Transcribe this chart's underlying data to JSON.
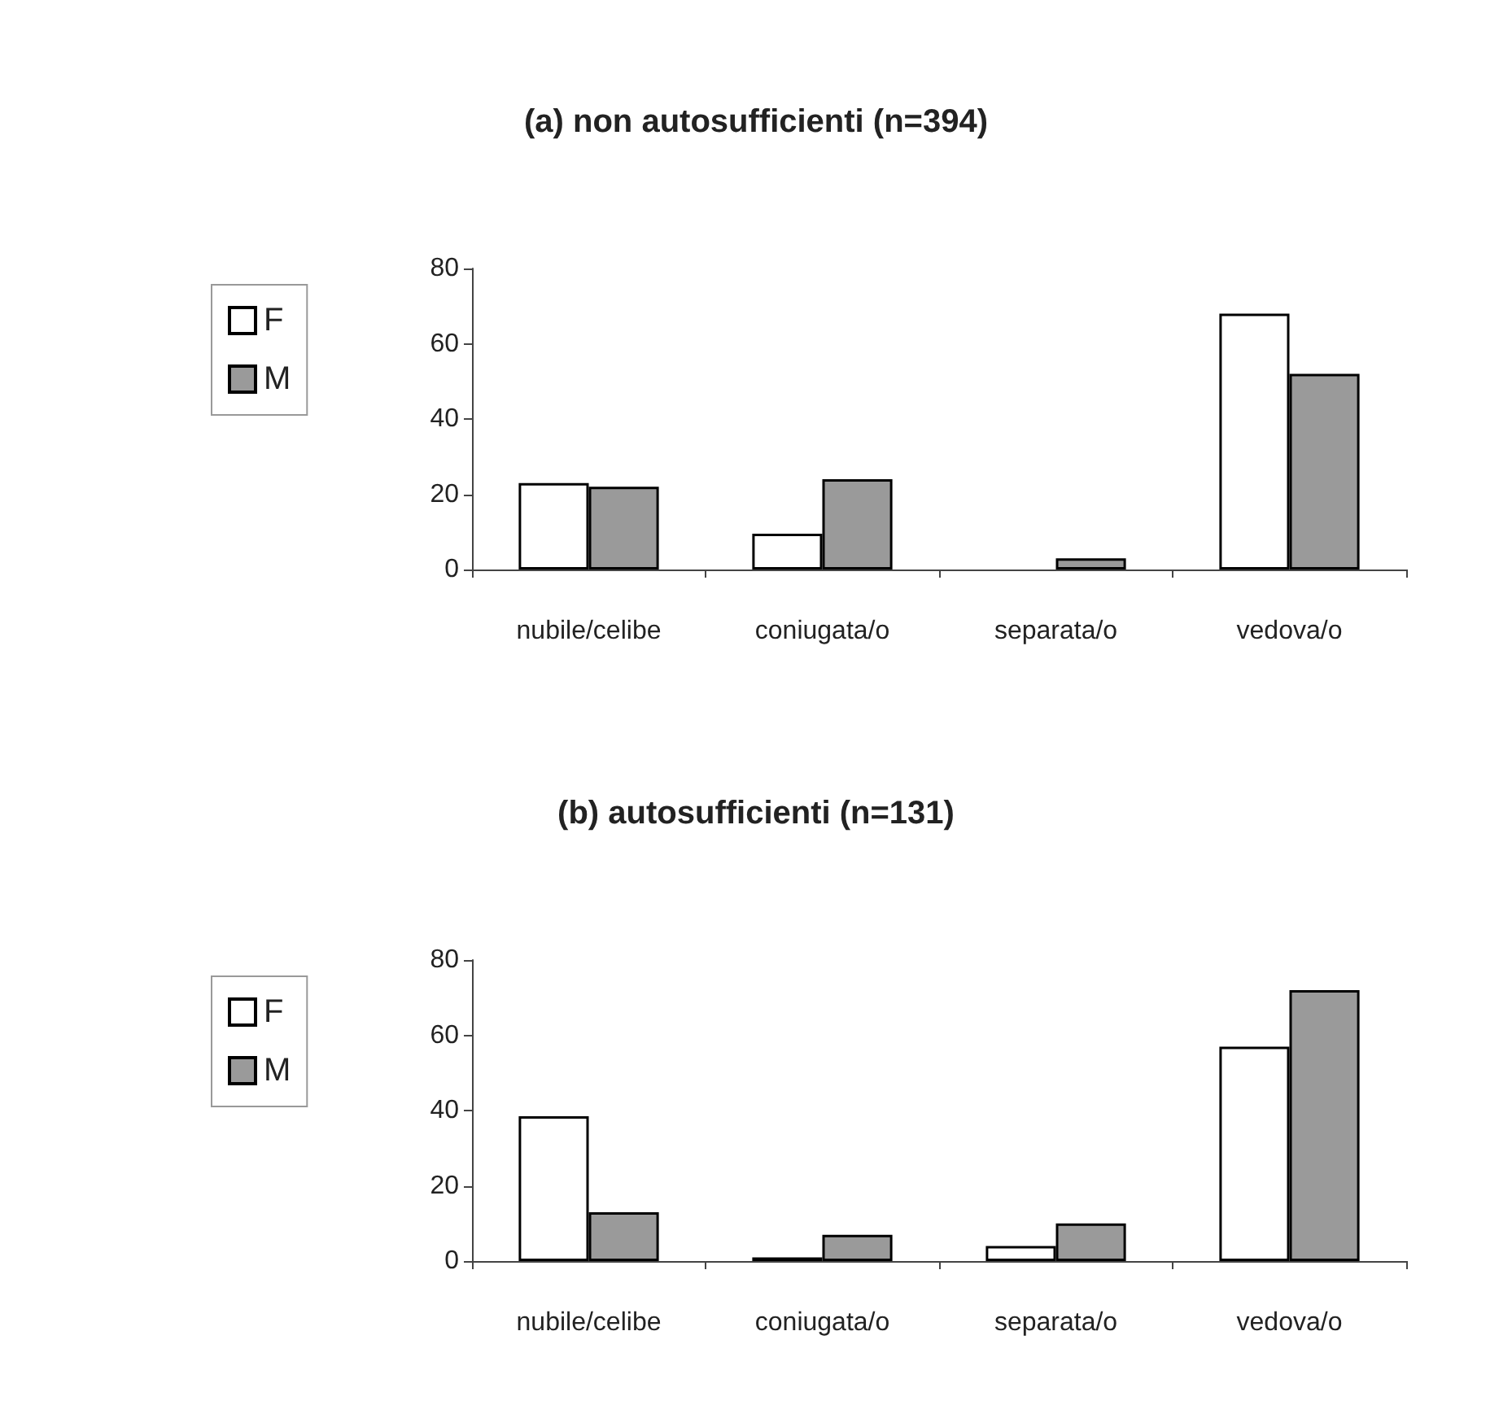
{
  "chart_data": [
    {
      "type": "bar",
      "title": "(a) non autosufficienti (n=394)",
      "categories": [
        "nubile/celibe",
        "coniugata/o",
        "separata/o",
        "vedova/o"
      ],
      "series": [
        {
          "name": "F",
          "color": "#ffffff",
          "values": [
            23,
            9.5,
            0,
            68
          ]
        },
        {
          "name": "M",
          "color": "#9a9a9a",
          "values": [
            22,
            24,
            3,
            52
          ]
        }
      ],
      "ylim": [
        0,
        80
      ],
      "yticks": [
        0,
        20,
        40,
        60,
        80
      ],
      "grid": false,
      "legend": "left"
    },
    {
      "type": "bar",
      "title": "(b) autosufficienti (n=131)",
      "categories": [
        "nubile/celibe",
        "coniugata/o",
        "separata/o",
        "vedova/o"
      ],
      "series": [
        {
          "name": "F",
          "color": "#ffffff",
          "values": [
            38.5,
            1,
            4,
            57
          ]
        },
        {
          "name": "M",
          "color": "#9a9a9a",
          "values": [
            13,
            7,
            10,
            72
          ]
        }
      ],
      "ylim": [
        0,
        80
      ],
      "yticks": [
        0,
        20,
        40,
        60,
        80
      ],
      "grid": false,
      "legend": "left"
    }
  ]
}
